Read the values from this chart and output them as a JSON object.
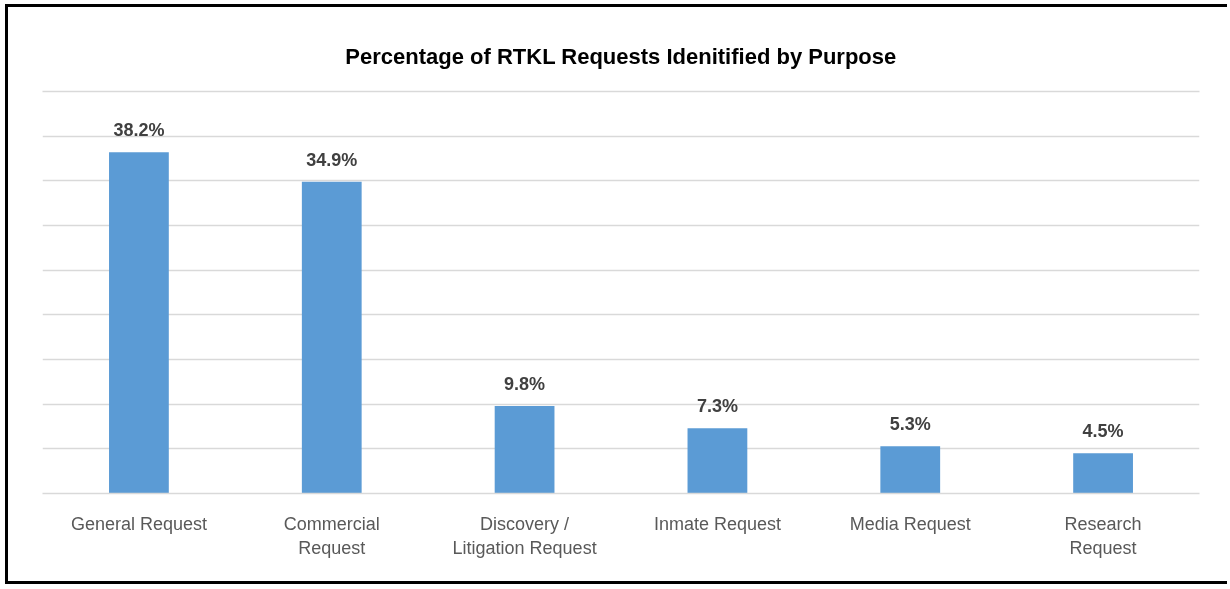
{
  "chart_data": {
    "type": "bar",
    "title": "Percentage of RTKL Requests Idenitified by Purpose",
    "categories": [
      "General Request",
      "Commercial Request",
      "Discovery / Litigation Request",
      "Inmate Request",
      "Media Request",
      "Research Request"
    ],
    "values": [
      38.2,
      34.9,
      9.8,
      7.3,
      5.3,
      4.5
    ],
    "color": "#5b9bd5",
    "value_labels": [
      "38.2%",
      "34.9%",
      "9.8%",
      "7.3%",
      "5.3%",
      "4.5%"
    ],
    "ylim": [
      0,
      45
    ],
    "yticks": [
      {
        "value": 0,
        "label": null
      },
      {
        "value": 5,
        "label": null
      },
      {
        "value": 10,
        "label": null
      },
      {
        "value": 15,
        "label": null
      },
      {
        "value": 20,
        "label": null
      },
      {
        "value": 25,
        "label": null
      },
      {
        "value": 30,
        "label": null
      },
      {
        "value": 35,
        "label": null
      },
      {
        "value": 40,
        "label": null
      },
      {
        "value": 45,
        "label": null
      }
    ],
    "grid": "y",
    "tick_labels": "x"
  }
}
